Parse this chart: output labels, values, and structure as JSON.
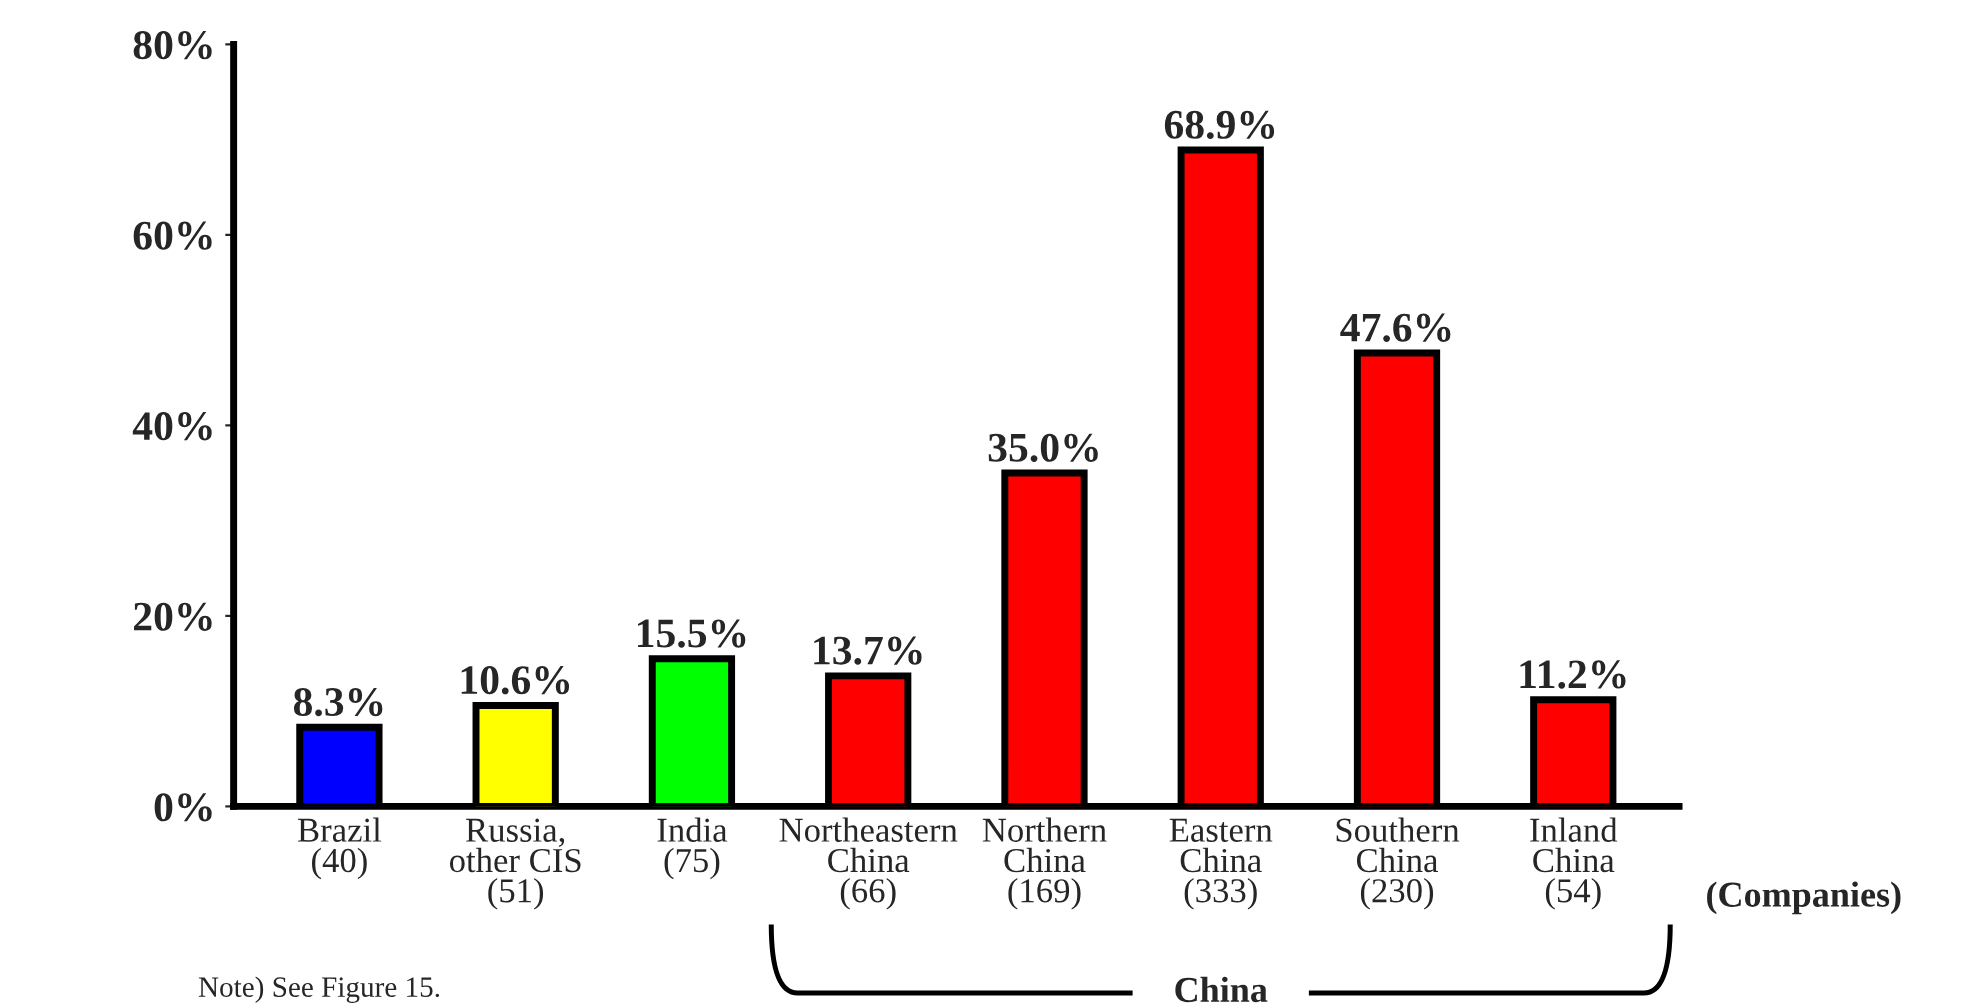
{
  "chart_data": {
    "type": "bar",
    "categories": [
      "Brazil\n(40)",
      "Russia,\nother CIS\n(51)",
      "India\n(75)",
      "Northeastern\nChina\n(66)",
      "Northern\nChina\n(169)",
      "Eastern\nChina\n(333)",
      "Southern\nChina\n(230)",
      "Inland\nChina\n(54)"
    ],
    "values": [
      8.3,
      10.6,
      15.5,
      13.7,
      35.0,
      68.9,
      47.6,
      11.2
    ],
    "colors": [
      "#0000ff",
      "#ffff00",
      "#00ff00",
      "#ff0000",
      "#ff0000",
      "#ff0000",
      "#ff0000",
      "#ff0000"
    ],
    "value_labels": [
      "8.3%",
      "10.6%",
      "15.5%",
      "13.7%",
      "35.0%",
      "68.9%",
      "47.6%",
      "11.2%"
    ],
    "ylim": [
      0,
      80
    ],
    "yticks": [
      {
        "value": 0,
        "label": "0%"
      },
      {
        "value": 20,
        "label": "20%"
      },
      {
        "value": 40,
        "label": "40%"
      },
      {
        "value": 60,
        "label": "60%"
      },
      {
        "value": 80,
        "label": "80%"
      }
    ],
    "annotations": [
      "(Companies)",
      "China",
      "Note) See Figure 15."
    ]
  }
}
